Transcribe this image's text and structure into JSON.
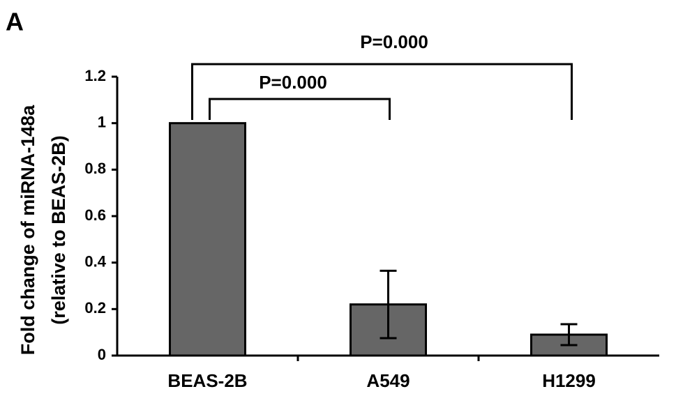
{
  "chart_data": {
    "type": "bar",
    "panel_label": "A",
    "ylabel": [
      "Fold change of miRNA-148a",
      "(relative to BEAS-2B)"
    ],
    "categories": [
      "BEAS-2B",
      "A549",
      "H1299"
    ],
    "values": [
      1,
      0.22,
      0.09
    ],
    "errors": [
      null,
      0.145,
      0.045
    ],
    "color": "#666666",
    "ylim": [
      0,
      1.2
    ],
    "yticks": [
      0,
      0.2,
      0.4,
      0.6,
      0.8,
      1,
      1.2
    ],
    "annotations": [
      "P=0.000",
      "P=0.000"
    ]
  }
}
